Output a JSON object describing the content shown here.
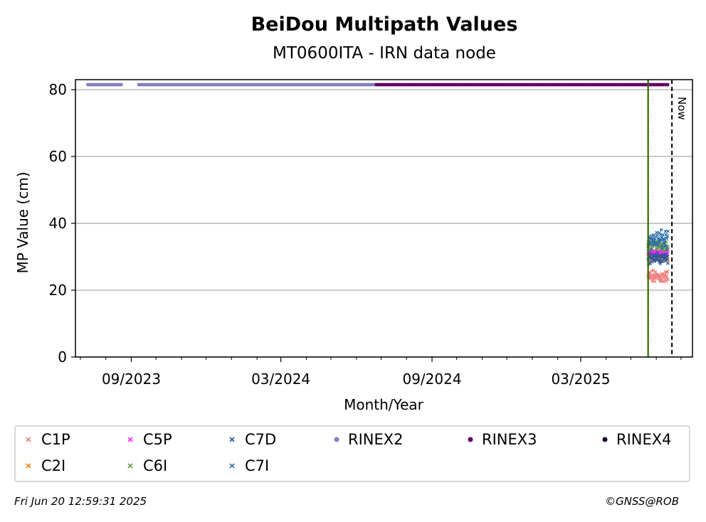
{
  "chart_data": {
    "type": "scatter",
    "title": "BeiDou Multipath Values",
    "subtitle": "MT0600ITA - IRN data node",
    "xlabel": "Month/Year",
    "ylabel": "MP Value (cm)",
    "ylim": [
      0,
      83
    ],
    "xlim": [
      "2023-06-25",
      "2025-07-15"
    ],
    "yticks": [
      0,
      20,
      40,
      60,
      80
    ],
    "xticks": [
      {
        "date": "2023-09-01",
        "label": "09/2023"
      },
      {
        "date": "2024-03-01",
        "label": "03/2024"
      },
      {
        "date": "2024-09-01",
        "label": "09/2024"
      },
      {
        "date": "2025-03-01",
        "label": "03/2025"
      }
    ],
    "minor_ticks": [
      "2023-07-01",
      "2023-08-01",
      "2023-10-01",
      "2023-11-01",
      "2023-12-01",
      "2024-01-01",
      "2024-02-01",
      "2024-04-01",
      "2024-05-01",
      "2024-06-01",
      "2024-07-01",
      "2024-08-01",
      "2024-10-01",
      "2024-11-01",
      "2024-12-01",
      "2025-01-01",
      "2025-02-01",
      "2025-04-01",
      "2025-05-01",
      "2025-06-01",
      "2025-07-01"
    ],
    "grid": "horizontal",
    "legend_position": "bottom",
    "reference_lines": [
      {
        "date": "2025-05-22",
        "style": "green-red-dotted"
      },
      {
        "date": "2025-06-20",
        "style": "black-dashed",
        "label": "Now"
      }
    ],
    "rinex_bars": [
      {
        "name": "RINEX2",
        "start": "2023-07-10",
        "end": "2023-08-20",
        "y": 81.5,
        "color": "#8080c0"
      },
      {
        "name": "RINEX2",
        "start": "2023-09-10",
        "end": "2024-06-25",
        "y": 81.5,
        "color": "#8080c0"
      },
      {
        "name": "RINEX3",
        "start": "2024-06-25",
        "end": "2025-06-15",
        "y": 81.5,
        "color": "#660066"
      }
    ],
    "data_range": {
      "start": "2025-05-22",
      "end": "2025-06-15"
    },
    "series": [
      {
        "name": "C1P",
        "center": 24,
        "spread": 1.6,
        "color": "#f08080",
        "marker": "x"
      },
      {
        "name": "C2I",
        "center": 30,
        "spread": 1.2,
        "color": "#ff7f0e",
        "marker": "x"
      },
      {
        "name": "C5P",
        "center": 31,
        "spread": 0.8,
        "color": "#ff22ff",
        "marker": "x"
      },
      {
        "name": "C6I",
        "center": 33.5,
        "spread": 1.2,
        "color": "#6a9a4a",
        "marker": "x"
      },
      {
        "name": "C7D",
        "center": 29.5,
        "spread": 1.3,
        "color": "#2a5a9a",
        "marker": "x"
      },
      {
        "name": "C7I",
        "center": 35,
        "spread": 2.4,
        "color": "#2e6faa",
        "marker": "x"
      }
    ],
    "legend": [
      {
        "label": "C1P",
        "color": "#f08080",
        "marker": "x"
      },
      {
        "label": "C5P",
        "color": "#ff22ff",
        "marker": "x"
      },
      {
        "label": "C7D",
        "color": "#2a5a9a",
        "marker": "x"
      },
      {
        "label": "RINEX2",
        "color": "#8080c0",
        "marker": "dot"
      },
      {
        "label": "RINEX3",
        "color": "#660066",
        "marker": "dot"
      },
      {
        "label": "RINEX4",
        "color": "#1a0033",
        "marker": "dot"
      },
      {
        "label": "C2I",
        "color": "#ff7f0e",
        "marker": "x"
      },
      {
        "label": "C6I",
        "color": "#6a9a4a",
        "marker": "x"
      },
      {
        "label": "C7I",
        "color": "#2e6faa",
        "marker": "x"
      }
    ]
  },
  "now_label": "Now",
  "footer": {
    "timestamp": "Fri Jun 20 12:59:31 2025",
    "credit": "©GNSS@ROB"
  }
}
